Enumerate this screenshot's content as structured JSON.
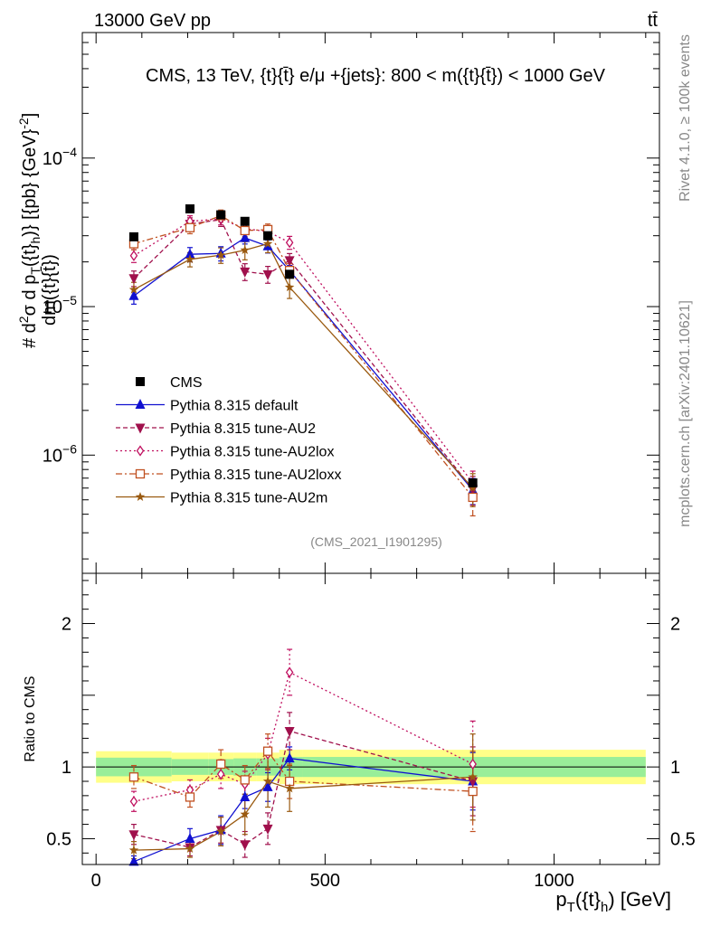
{
  "header": {
    "left": "13000 GeV pp",
    "right": "tt̄"
  },
  "side_labels": {
    "rivet": "Rivet 4.1.0, ≥ 100k events",
    "mcplots": "mcplots.cern.ch [arXiv:2401.10621]"
  },
  "chart_data": {
    "type": "line",
    "title": "CMS, 13 TeV, {t}{t̄} e/μ +{jets}: 800 < m({t}{t̄}) < 1000 GeV",
    "analysis_tag": "(CMS_2021_I1901295)",
    "xlabel": "p_T({t}_h) [GeV]",
    "ylabel": "d²σ / dm({t}{t̄}) d p_T({t}_h) [{pb} {GeV}⁻²]",
    "ylabel_parts": {
      "hash": "#",
      "num": "d",
      "num_sup": "2",
      "num_sigma": "σ",
      "den": "dm({t}{t̄})",
      "rest": "d p",
      "rest_sub": "T",
      "rest2": "({t}",
      "rest2_sub": "h",
      "rest3": ")} [{pb} {GeV}",
      "rest3_sup": "-2",
      "rest4": "]"
    },
    "yscale": "log",
    "xlim": [
      -30,
      1230
    ],
    "ylim": [
      1.6e-07,
      0.0007
    ],
    "yticks": [
      {
        "value": 0.0001,
        "base": "10",
        "exp": "−4"
      },
      {
        "value": 1e-05,
        "base": "10",
        "exp": "−5"
      },
      {
        "value": 1e-06,
        "base": "10",
        "exp": "−6"
      }
    ],
    "xticks": [
      {
        "value": 0,
        "label": "0"
      },
      {
        "value": 500,
        "label": "500"
      },
      {
        "value": 1000,
        "label": "1000"
      }
    ],
    "x": [
      82.5,
      205,
      272.5,
      325,
      375,
      422.5,
      822.5
    ],
    "data": {
      "name": "CMS",
      "values": [
        2.95e-05,
        4.55e-05,
        4.15e-05,
        3.75e-05,
        3e-05,
        1.65e-05,
        6.5e-07
      ]
    },
    "series": [
      {
        "name": "Pythia 8.315 default",
        "color": "#1010d0",
        "marker": "triangle-up",
        "dash": "",
        "values": [
          1.18e-05,
          2.25e-05,
          2.28e-05,
          2.9e-05,
          2.55e-05,
          1.75e-05,
          5.8e-07
        ],
        "errors": [
          0.12,
          0.11,
          0.11,
          0.09,
          0.1,
          0.08,
          0.2
        ],
        "ratio": [
          0.34,
          0.5,
          0.56,
          0.79,
          0.86,
          1.06,
          0.9
        ],
        "ratio_err": [
          0.04,
          0.07,
          0.1,
          0.08,
          0.1,
          0.08,
          0.2
        ]
      },
      {
        "name": "Pythia 8.315 tune-AU2",
        "color": "#a0104c",
        "marker": "triangle-down",
        "dash": "5,3",
        "values": [
          1.55e-05,
          3.6e-05,
          3.85e-05,
          1.72e-05,
          1.65e-05,
          2.05e-05,
          5.9e-07
        ],
        "errors": [
          0.12,
          0.1,
          0.1,
          0.13,
          0.13,
          0.11,
          0.22
        ],
        "ratio": [
          0.53,
          0.44,
          0.56,
          0.46,
          0.57,
          1.25,
          0.9
        ],
        "ratio_err": [
          0.07,
          0.06,
          0.09,
          0.09,
          0.11,
          0.13,
          0.24
        ]
      },
      {
        "name": "Pythia 8.315 tune-AU2lox",
        "color": "#c01060",
        "marker": "diamond-open",
        "dash": "2,3",
        "values": [
          2.2e-05,
          3.75e-05,
          3.9e-05,
          3.35e-05,
          3.2e-05,
          2.7e-05,
          6.5e-07
        ],
        "errors": [
          0.1,
          0.09,
          0.09,
          0.09,
          0.09,
          0.1,
          0.2
        ],
        "ratio": [
          0.76,
          0.84,
          0.95,
          0.88,
          1.09,
          1.66,
          1.02
        ],
        "ratio_err": [
          0.07,
          0.07,
          0.1,
          0.09,
          0.11,
          0.16,
          0.3
        ]
      },
      {
        "name": "Pythia 8.315 tune-AU2loxx",
        "color": "#c05020",
        "marker": "square-open",
        "dash": "7,3,2,3",
        "values": [
          2.65e-05,
          3.4e-05,
          4.1e-05,
          3.25e-05,
          3.3e-05,
          1.75e-05,
          5.2e-07
        ],
        "errors": [
          0.09,
          0.09,
          0.09,
          0.09,
          0.09,
          0.11,
          0.25
        ],
        "ratio": [
          0.93,
          0.79,
          1.02,
          0.91,
          1.11,
          0.9,
          0.83
        ],
        "ratio_err": [
          0.08,
          0.07,
          0.1,
          0.1,
          0.12,
          0.12,
          0.28
        ]
      },
      {
        "name": "Pythia 8.315 tune-AU2m",
        "color": "#9a5a10",
        "marker": "star",
        "dash": "",
        "values": [
          1.3e-05,
          2.08e-05,
          2.22e-05,
          2.4e-05,
          2.65e-05,
          1.35e-05,
          6e-07
        ],
        "errors": [
          0.12,
          0.11,
          0.12,
          0.14,
          0.13,
          0.16,
          0.25
        ],
        "ratio": [
          0.42,
          0.43,
          0.55,
          0.67,
          0.9,
          0.85,
          0.93
        ],
        "ratio_err": [
          0.06,
          0.06,
          0.1,
          0.14,
          0.18,
          0.16,
          0.3
        ]
      }
    ],
    "ratio_panel": {
      "ylabel": "Ratio to CMS",
      "ylim": [
        0.32,
        2.35
      ],
      "yticks": [
        {
          "value": 0.5,
          "label": "0.5"
        },
        {
          "value": 1,
          "label": "1"
        },
        {
          "value": 2,
          "label": "2"
        }
      ],
      "band_edges": [
        0,
        165,
        245,
        300,
        350,
        400,
        450,
        1200
      ],
      "band_inner": [
        0.065,
        0.055,
        0.055,
        0.06,
        0.06,
        0.07,
        0.07
      ],
      "band_outer": [
        0.11,
        0.1,
        0.1,
        0.1,
        0.1,
        0.12,
        0.12
      ]
    }
  }
}
